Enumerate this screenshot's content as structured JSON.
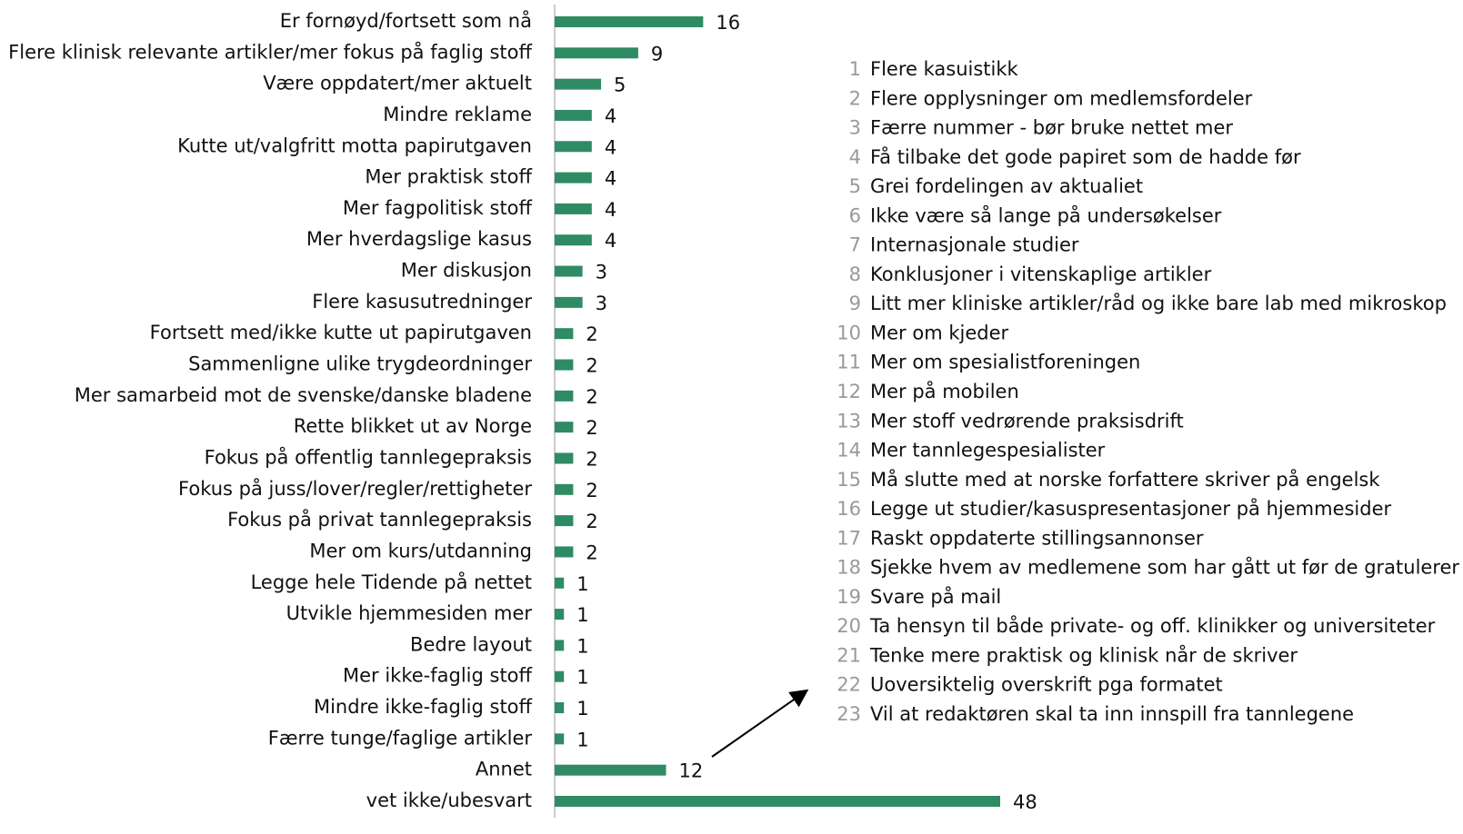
{
  "chart_data": {
    "type": "bar",
    "orientation": "horizontal",
    "color": "#2e8b63",
    "categories": [
      "Er fornøyd/fortsett som nå",
      "Flere klinisk relevante artikler/mer fokus på faglig stoff",
      "Være oppdatert/mer aktuelt",
      "Mindre reklame",
      "Kutte ut/valgfritt motta papirutgaven",
      "Mer praktisk stoff",
      "Mer fagpolitisk stoff",
      "Mer hverdagslige kasus",
      "Mer diskusjon",
      "Flere kasusutredninger",
      "Fortsett med/ikke kutte ut papirutgaven",
      "Sammenligne ulike trygdeordninger",
      "Mer samarbeid mot de svenske/danske bladene",
      "Rette blikket ut av Norge",
      "Fokus på offentlig tannlegepraksis",
      "Fokus på juss/lover/regler/rettigheter",
      "Fokus på privat tannlegepraksis",
      "Mer om kurs/utdanning",
      "Legge hele Tidende på nettet",
      "Utvikle hjemmesiden mer",
      "Bedre layout",
      "Mer ikke-faglig stoff",
      "Mindre ikke-faglig stoff",
      "Færre tunge/faglige artikler",
      "Annet",
      "vet ikke/ubesvart"
    ],
    "values": [
      16,
      9,
      5,
      4,
      4,
      4,
      4,
      4,
      3,
      3,
      2,
      2,
      2,
      2,
      2,
      2,
      2,
      2,
      1,
      1,
      1,
      1,
      1,
      1,
      12,
      48
    ],
    "notes": [
      {
        "number": 1,
        "text": "Flere kasuistikk"
      },
      {
        "number": 2,
        "text": "Flere opplysninger om medlemsfordeler"
      },
      {
        "number": 3,
        "text": "Færre nummer - bør bruke nettet mer"
      },
      {
        "number": 4,
        "text": "Få tilbake det gode papiret som de hadde før"
      },
      {
        "number": 5,
        "text": "Grei fordelingen av aktualiet"
      },
      {
        "number": 6,
        "text": "Ikke være så lange på undersøkelser"
      },
      {
        "number": 7,
        "text": "Internasjonale studier"
      },
      {
        "number": 8,
        "text": "Konklusjoner i vitenskaplige artikler"
      },
      {
        "number": 9,
        "text": "Litt mer kliniske artikler/råd og ikke bare lab med mikroskop"
      },
      {
        "number": 10,
        "text": "Mer om kjeder"
      },
      {
        "number": 11,
        "text": "Mer om spesialistforeningen"
      },
      {
        "number": 12,
        "text": "Mer på mobilen"
      },
      {
        "number": 13,
        "text": "Mer stoff vedrørende praksisdrift"
      },
      {
        "number": 14,
        "text": "Mer tannlegespesialister"
      },
      {
        "number": 15,
        "text": "Må slutte med at norske forfattere skriver på engelsk"
      },
      {
        "number": 16,
        "text": "Legge ut studier/kasuspresentasjoner på hjemmesider"
      },
      {
        "number": 17,
        "text": "Raskt oppdaterte stillingsannonser"
      },
      {
        "number": 18,
        "text": "Sjekke hvem av medlemene som har gått ut før de gratulerer"
      },
      {
        "number": 19,
        "text": "Svare på mail"
      },
      {
        "number": 20,
        "text": "Ta hensyn til både private- og off. klinikker og universiteter"
      },
      {
        "number": 21,
        "text": "Tenke mere praktisk og klinisk når de skriver"
      },
      {
        "number": 22,
        "text": "Uoversiktelig overskrift pga formatet"
      },
      {
        "number": 23,
        "text": "Vil at redaktøren skal ta inn innspill fra tannlegene"
      }
    ]
  }
}
